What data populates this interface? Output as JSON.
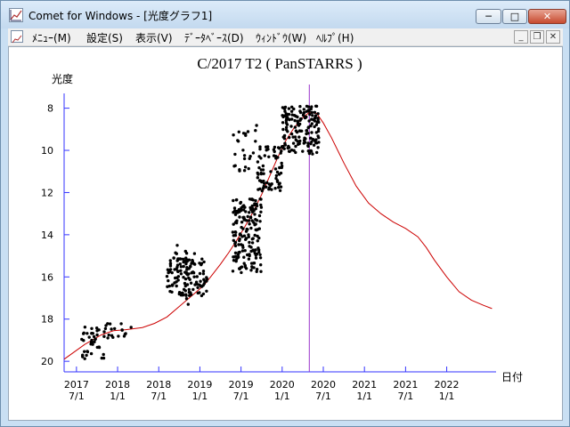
{
  "window": {
    "title": "Comet for Windows - [光度グラフ1]",
    "app_icon": "chart-icon",
    "controls": {
      "minimize": "─",
      "maximize": "□",
      "close": "✕"
    }
  },
  "menu": {
    "items": [
      "ﾒﾆｭｰ(M)",
      "設定(S)",
      "表示(V)",
      "ﾃﾞｰﾀﾍﾞｰｽ(D)",
      "ｳｨﾝﾄﾞｳ(W)",
      "ﾍﾙﾌﾟ(H)"
    ],
    "mdi_controls": {
      "minimize": "_",
      "restore": "❐",
      "close": "✕"
    }
  },
  "chart_data": {
    "type": "scatter",
    "title": "C/2017 T2 ( PanSTARRS )",
    "ylabel": "光度",
    "xlabel": "日付",
    "ylim": [
      20.5,
      7.3
    ],
    "y_inverted": true,
    "y_ticks": [
      8,
      10,
      12,
      14,
      16,
      18,
      20
    ],
    "xlim": [
      2017.35,
      2022.6
    ],
    "x_ticks": [
      {
        "year": "2017",
        "date": "7/1",
        "x": 2017.5
      },
      {
        "year": "2018",
        "date": "1/1",
        "x": 2018.0
      },
      {
        "year": "2018",
        "date": "7/1",
        "x": 2018.5
      },
      {
        "year": "2019",
        "date": "1/1",
        "x": 2019.0
      },
      {
        "year": "2019",
        "date": "7/1",
        "x": 2019.5
      },
      {
        "year": "2020",
        "date": "1/1",
        "x": 2020.0
      },
      {
        "year": "2020",
        "date": "7/1",
        "x": 2020.5
      },
      {
        "year": "2021",
        "date": "1/1",
        "x": 2021.0
      },
      {
        "year": "2021",
        "date": "7/1",
        "x": 2021.5
      },
      {
        "year": "2022",
        "date": "1/1",
        "x": 2022.0
      }
    ],
    "marker_x": 2020.33,
    "predicted_curve": [
      [
        2017.35,
        19.9
      ],
      [
        2017.6,
        19.2
      ],
      [
        2017.8,
        18.75
      ],
      [
        2017.95,
        18.55
      ],
      [
        2018.1,
        18.5
      ],
      [
        2018.3,
        18.4
      ],
      [
        2018.45,
        18.2
      ],
      [
        2018.6,
        17.9
      ],
      [
        2018.75,
        17.4
      ],
      [
        2018.9,
        16.9
      ],
      [
        2019.05,
        16.4
      ],
      [
        2019.15,
        15.9
      ],
      [
        2019.25,
        15.4
      ],
      [
        2019.35,
        14.85
      ],
      [
        2019.45,
        14.25
      ],
      [
        2019.55,
        13.6
      ],
      [
        2019.65,
        12.9
      ],
      [
        2019.75,
        12.1
      ],
      [
        2019.85,
        11.2
      ],
      [
        2019.95,
        10.3
      ],
      [
        2020.05,
        9.5
      ],
      [
        2020.15,
        8.9
      ],
      [
        2020.25,
        8.45
      ],
      [
        2020.33,
        8.2
      ],
      [
        2020.42,
        8.25
      ],
      [
        2020.5,
        8.7
      ],
      [
        2020.6,
        9.4
      ],
      [
        2020.75,
        10.6
      ],
      [
        2020.9,
        11.7
      ],
      [
        2021.05,
        12.5
      ],
      [
        2021.2,
        13.0
      ],
      [
        2021.35,
        13.4
      ],
      [
        2021.5,
        13.7
      ],
      [
        2021.65,
        14.1
      ],
      [
        2021.75,
        14.6
      ],
      [
        2021.85,
        15.2
      ],
      [
        2022.0,
        16.0
      ],
      [
        2022.15,
        16.7
      ],
      [
        2022.3,
        17.1
      ],
      [
        2022.45,
        17.35
      ],
      [
        2022.55,
        17.5
      ]
    ],
    "observations_summary": "black dot observations clustered along the curve from 2017 to 2020.7",
    "observation_clusters": [
      {
        "x": [
          2017.55,
          2017.85
        ],
        "y": [
          18.3,
          19.9
        ],
        "n": 40
      },
      {
        "x": [
          2017.85,
          2018.2
        ],
        "y": [
          18.2,
          18.9
        ],
        "n": 18
      },
      {
        "x": [
          2018.6,
          2019.1
        ],
        "y": [
          15.1,
          16.9
        ],
        "n": 120
      },
      {
        "x": [
          2018.7,
          2019.0
        ],
        "y": [
          14.0,
          17.5
        ],
        "n": 20
      },
      {
        "x": [
          2019.4,
          2019.75
        ],
        "y": [
          12.3,
          15.8
        ],
        "n": 170
      },
      {
        "x": [
          2019.4,
          2019.7
        ],
        "y": [
          8.8,
          11.0
        ],
        "n": 25
      },
      {
        "x": [
          2019.7,
          2020.0
        ],
        "y": [
          9.8,
          12.0
        ],
        "n": 70
      },
      {
        "x": [
          2020.0,
          2020.45
        ],
        "y": [
          7.9,
          10.2
        ],
        "n": 160
      }
    ]
  }
}
